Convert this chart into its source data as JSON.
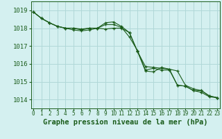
{
  "title": "Graphe pression niveau de la mer (hPa)",
  "background_color": "#d4f0f0",
  "grid_color": "#b0d8d8",
  "line_color": "#1a5c1a",
  "x_values": [
    0,
    1,
    2,
    3,
    4,
    5,
    6,
    7,
    8,
    9,
    10,
    11,
    12,
    13,
    14,
    15,
    16,
    17,
    18,
    19,
    20,
    21,
    22,
    23
  ],
  "line1": [
    1018.9,
    1018.55,
    1018.3,
    1018.1,
    1018.0,
    1018.0,
    1017.95,
    1018.0,
    1018.0,
    1017.95,
    1018.0,
    1018.0,
    1017.75,
    1016.7,
    1015.85,
    1015.8,
    1015.75,
    1015.7,
    1015.6,
    1014.8,
    1014.6,
    1014.5,
    1014.2,
    1014.1
  ],
  "line2": [
    1018.9,
    1018.55,
    1018.3,
    1018.1,
    1018.0,
    1017.9,
    1017.85,
    1017.9,
    1018.0,
    1018.3,
    1018.35,
    1018.1,
    1017.75,
    1016.7,
    1015.6,
    1015.55,
    1015.8,
    1015.7,
    1014.8,
    1014.75,
    1014.5,
    1014.5,
    1014.2,
    1014.1
  ],
  "line3": [
    1018.9,
    1018.55,
    1018.3,
    1018.1,
    1018.0,
    1018.0,
    1017.9,
    1018.0,
    1018.0,
    1018.2,
    1018.2,
    1018.05,
    1017.5,
    1016.75,
    1015.65,
    1015.75,
    1015.65,
    1015.65,
    1014.8,
    1014.75,
    1014.5,
    1014.4,
    1014.15,
    1014.1
  ],
  "ylim_min": 1013.5,
  "ylim_max": 1019.5,
  "yticks": [
    1014,
    1015,
    1016,
    1017,
    1018,
    1019
  ],
  "title_fontsize": 7.5,
  "tick_fontsize": 6.5
}
